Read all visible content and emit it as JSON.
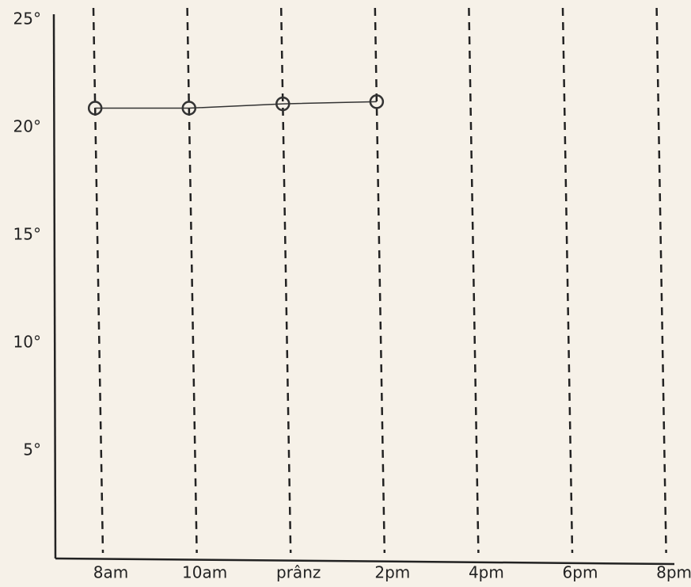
{
  "chart_data": {
    "type": "line",
    "categories": [
      "8am",
      "10am",
      "prânz",
      "2pm",
      "4pm",
      "6pm",
      "8pm"
    ],
    "series": [
      {
        "color": "#333333",
        "values": [
          20.9,
          20.9,
          21.1,
          21.2,
          null,
          null,
          null
        ]
      }
    ],
    "ylim": [
      0,
      25
    ],
    "yticks": [
      {
        "value": 5,
        "label": "5°"
      },
      {
        "value": 10,
        "label": "10°"
      },
      {
        "value": 15,
        "label": "15°"
      },
      {
        "value": 20,
        "label": "20°"
      },
      {
        "value": 25,
        "label": "25°"
      }
    ],
    "grid": false
  }
}
